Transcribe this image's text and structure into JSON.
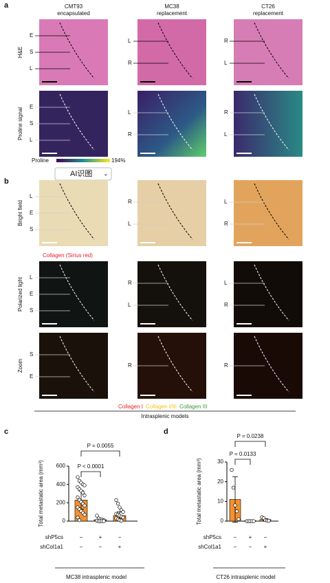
{
  "panel_a": {
    "label": "a",
    "columns": [
      {
        "name": "CMT93",
        "subtitle": "encapsulated"
      },
      {
        "name": "MC38",
        "subtitle": "replacement"
      },
      {
        "name": "CT26",
        "subtitle": "replacement"
      }
    ],
    "rows": [
      {
        "name": "H&E",
        "labels": [
          [
            "E",
            "S",
            "L"
          ],
          [
            "L",
            "R"
          ],
          [
            "R",
            "L"
          ]
        ]
      },
      {
        "name": "Proline signal",
        "labels": [
          [
            "E",
            "S",
            "L"
          ],
          [
            "L",
            "R"
          ],
          [
            "R",
            "L"
          ]
        ]
      }
    ],
    "colorbar": {
      "label": "Proline",
      "max": "194%"
    }
  },
  "toolbar": {
    "button": "AI识图"
  },
  "panel_b": {
    "label": "b",
    "rows": [
      {
        "name": "Bright field",
        "labels": [
          [
            "L",
            "E",
            "S"
          ],
          [
            "R",
            "L"
          ],
          [
            "L",
            "R"
          ]
        ]
      },
      {
        "name": "Polarized light",
        "labels": [
          [
            "L",
            "E",
            "S"
          ],
          [
            "R",
            "L"
          ],
          [
            "L",
            "R"
          ]
        ]
      },
      {
        "name": "Zoom",
        "labels": [
          [
            "S",
            "E"
          ],
          [
            "R"
          ],
          [
            "R"
          ]
        ]
      }
    ],
    "caption": "Collagen (Sirius red)",
    "legend": [
      {
        "text": "Collagen I",
        "color": "#e8202a"
      },
      {
        "text": "Collagen I/III",
        "color": "#f2c318"
      },
      {
        "text": "Collagen III",
        "color": "#3a9a3a"
      }
    ],
    "footer": "Intrasplenic models"
  },
  "chart_data": [
    {
      "type": "bar",
      "label": "c",
      "ylabel": "Total metastatic area (mm³)",
      "values": [
        230,
        15,
        60
      ],
      "errors": [
        100,
        15,
        40
      ],
      "color": "#f39130",
      "points": [
        [
          480,
          440,
          420,
          400,
          390,
          370,
          350,
          330,
          310,
          280,
          260,
          230,
          210,
          190,
          170,
          150,
          130,
          110,
          90,
          70,
          40,
          10
        ],
        [
          60,
          30,
          20,
          15,
          10,
          5,
          0,
          0,
          0,
          0
        ],
        [
          230,
          190,
          150,
          120,
          100,
          80,
          70,
          60,
          50,
          40,
          30,
          20,
          10,
          5
        ]
      ],
      "ylim": [
        0,
        600
      ],
      "yticks": [
        0,
        200,
        400,
        600
      ],
      "conditions": [
        {
          "label": "shP5cs",
          "values": [
            "−",
            "+",
            "−"
          ]
        },
        {
          "label": "shCol1a1",
          "values": [
            "−",
            "−",
            "+"
          ]
        }
      ],
      "annotations": [
        "P = 0.0055",
        "P < 0.0001"
      ],
      "xlabel": "MC38 intrasplenic model"
    },
    {
      "type": "bar",
      "label": "d",
      "ylabel": "Total metastatic area (mm³)",
      "values": [
        11,
        0.3,
        0.8
      ],
      "errors": [
        11.5,
        0.2,
        0.5
      ],
      "color": "#f39130",
      "points": [
        [
          26,
          17,
          8,
          5,
          1
        ],
        [
          0,
          0,
          0,
          0,
          0
        ],
        [
          2,
          1.5,
          0.5,
          0.3,
          0.2
        ]
      ],
      "ylim": [
        0,
        30
      ],
      "yticks": [
        0,
        10,
        20,
        30
      ],
      "conditions": [
        {
          "label": "shP5cs",
          "values": [
            "−",
            "+",
            "−"
          ]
        },
        {
          "label": "shCol1a1",
          "values": [
            "−",
            "−",
            "+"
          ]
        }
      ],
      "annotations": [
        "P = 0.0238",
        "P = 0.0133"
      ],
      "xlabel": "CT26 intrasplenic model"
    }
  ]
}
